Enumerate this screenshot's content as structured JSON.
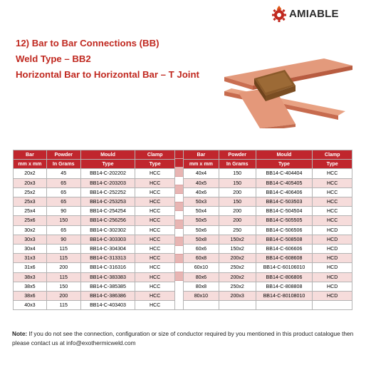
{
  "brand": {
    "name": "AMIABLE",
    "logo_icon": "gear-flame-icon",
    "color": "#c0281f"
  },
  "headings": {
    "line1": "12) Bar to Bar Connections (BB)",
    "line2": "Weld Type – BB2",
    "line3": "Horizontal Bar to Horizontal Bar – T Joint"
  },
  "colors": {
    "header": "#c0262d",
    "alt_row": "#f6dcdb",
    "heading": "#c0281f"
  },
  "table": {
    "headers": [
      "Bar",
      "Powder",
      "Mould",
      "Clamp"
    ],
    "subheaders": [
      "mm x mm",
      "In Grams",
      "Type",
      "Type"
    ],
    "left_rows": [
      [
        "20x2",
        "45",
        "BB14-C-202202",
        "HCC"
      ],
      [
        "20x3",
        "65",
        "BB14-C-203203",
        "HCC"
      ],
      [
        "25x2",
        "65",
        "BB14-C-252252",
        "HCC"
      ],
      [
        "25x3",
        "65",
        "BB14-C-253253",
        "HCC"
      ],
      [
        "25x4",
        "90",
        "BB14-C-254254",
        "HCC"
      ],
      [
        "25x6",
        "150",
        "BB14-C-256256",
        "HCC"
      ],
      [
        "30x2",
        "65",
        "BB14-C-302302",
        "HCC"
      ],
      [
        "30x3",
        "90",
        "BB14-C-303303",
        "HCC"
      ],
      [
        "30x4",
        "115",
        "BB14-C-304304",
        "HCC"
      ],
      [
        "31x3",
        "115",
        "BB14-C-313313",
        "HCC"
      ],
      [
        "31x6",
        "200",
        "BB14-C-316316",
        "HCC"
      ],
      [
        "38x3",
        "115",
        "BB14-C-383383",
        "HCC"
      ],
      [
        "38x5",
        "150",
        "BB14-C-385385",
        "HCC"
      ],
      [
        "38x6",
        "200",
        "BB14-C-386386",
        "HCC"
      ],
      [
        "40x3",
        "115",
        "BB14-C-403403",
        "HCC"
      ]
    ],
    "right_rows": [
      [
        "40x4",
        "150",
        "BB14-C-404404",
        "HCC"
      ],
      [
        "40x5",
        "150",
        "BB14-C-405405",
        "HCC"
      ],
      [
        "40x6",
        "200",
        "BB14-C-406406",
        "HCC"
      ],
      [
        "50x3",
        "150",
        "BB14-C-503503",
        "HCC"
      ],
      [
        "50x4",
        "200",
        "BB14-C-504504",
        "HCC"
      ],
      [
        "50x5",
        "200",
        "BB14-C-505505",
        "HCC"
      ],
      [
        "50x6",
        "250",
        "BB14-C-506506",
        "HCD"
      ],
      [
        "50x8",
        "150x2",
        "BB14-C-508508",
        "HCD"
      ],
      [
        "60x6",
        "150x2",
        "BB14-C-606606",
        "HCD"
      ],
      [
        "60x8",
        "200x2",
        "BB14-C-608608",
        "HCD"
      ],
      [
        "60x10",
        "250x2",
        "BB14-C-60106010",
        "HCD"
      ],
      [
        "80x6",
        "200x2",
        "BB14-C-806806",
        "HCD"
      ],
      [
        "80x8",
        "250x2",
        "BB14-C-808808",
        "HCD"
      ],
      [
        "80x10",
        "200x3",
        "BB14-C-80108010",
        "HCD"
      ]
    ]
  },
  "note": {
    "label": "Note:",
    "text": "If you do not see the connection, configuration or size of conductor required by you mentioned in this product catalogue then please contact us at info@exothermicweld.com"
  }
}
